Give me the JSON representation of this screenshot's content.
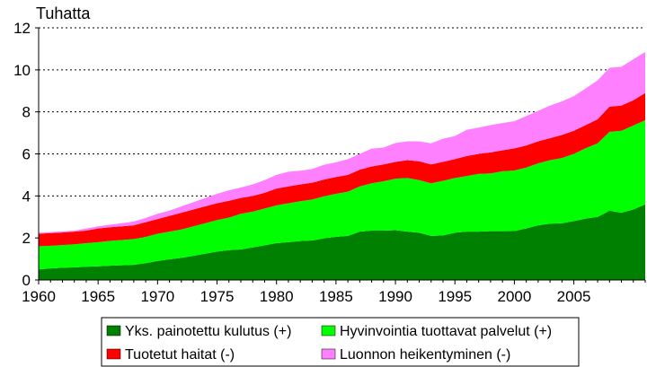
{
  "chart_data": {
    "type": "area",
    "stacked": true,
    "ylabel": "Tuhatta",
    "ylim": [
      0,
      12
    ],
    "yticks": [
      "0",
      "2",
      "4",
      "6",
      "8",
      "10",
      "12"
    ],
    "xlim": [
      1960,
      2011
    ],
    "xticks": [
      "1960",
      "1965",
      "1970",
      "1975",
      "1980",
      "1985",
      "1990",
      "1995",
      "2000",
      "2005"
    ],
    "grid": "horizontal dotted",
    "legend_position": "bottom",
    "x": [
      1960,
      1961,
      1962,
      1963,
      1964,
      1965,
      1966,
      1967,
      1968,
      1969,
      1970,
      1971,
      1972,
      1973,
      1974,
      1975,
      1976,
      1977,
      1978,
      1979,
      1980,
      1981,
      1982,
      1983,
      1984,
      1985,
      1986,
      1987,
      1988,
      1989,
      1990,
      1991,
      1992,
      1993,
      1994,
      1995,
      1996,
      1997,
      1998,
      1999,
      2000,
      2001,
      2002,
      2003,
      2004,
      2005,
      2006,
      2007,
      2008,
      2009,
      2010,
      2011
    ],
    "series": [
      {
        "name": "Yks. painotettu kulutus (+)",
        "color": "#008000",
        "values": [
          0.5,
          0.55,
          0.58,
          0.6,
          0.63,
          0.65,
          0.68,
          0.7,
          0.72,
          0.8,
          0.9,
          0.98,
          1.05,
          1.15,
          1.25,
          1.35,
          1.42,
          1.45,
          1.55,
          1.65,
          1.75,
          1.8,
          1.85,
          1.88,
          1.98,
          2.05,
          2.1,
          2.3,
          2.35,
          2.35,
          2.37,
          2.3,
          2.25,
          2.1,
          2.12,
          2.25,
          2.3,
          2.3,
          2.32,
          2.32,
          2.33,
          2.45,
          2.6,
          2.68,
          2.7,
          2.8,
          2.92,
          3.0,
          3.3,
          3.2,
          3.35,
          3.6
        ]
      },
      {
        "name": "Hyvinvointia tuottavat palvelut (+)",
        "color": "#00ff00",
        "values": [
          1.1,
          1.08,
          1.08,
          1.1,
          1.12,
          1.15,
          1.18,
          1.2,
          1.23,
          1.25,
          1.3,
          1.32,
          1.35,
          1.4,
          1.45,
          1.5,
          1.55,
          1.7,
          1.7,
          1.75,
          1.8,
          1.85,
          1.9,
          1.95,
          2.0,
          2.05,
          2.1,
          2.15,
          2.25,
          2.35,
          2.45,
          2.55,
          2.5,
          2.5,
          2.6,
          2.6,
          2.65,
          2.75,
          2.75,
          2.85,
          2.88,
          2.9,
          2.95,
          3.02,
          3.1,
          3.2,
          3.35,
          3.5,
          3.75,
          3.9,
          4.0,
          4.0
        ]
      },
      {
        "name": "Tuotetut haitat (-)",
        "color": "#ff0000",
        "values": [
          0.6,
          0.6,
          0.6,
          0.6,
          0.6,
          0.65,
          0.65,
          0.65,
          0.65,
          0.7,
          0.7,
          0.75,
          0.8,
          0.8,
          0.8,
          0.8,
          0.8,
          0.75,
          0.75,
          0.75,
          0.8,
          0.8,
          0.8,
          0.8,
          0.8,
          0.8,
          0.8,
          0.8,
          0.8,
          0.8,
          0.8,
          0.85,
          0.9,
          0.9,
          0.9,
          0.9,
          0.95,
          0.95,
          1.0,
          1.0,
          1.05,
          1.05,
          1.05,
          1.05,
          1.1,
          1.1,
          1.1,
          1.15,
          1.2,
          1.2,
          1.2,
          1.3
        ]
      },
      {
        "name": "Luonnon heikentyminen (-)",
        "color": "#ff80ff",
        "values": [
          0.05,
          0.05,
          0.05,
          0.05,
          0.1,
          0.1,
          0.12,
          0.15,
          0.18,
          0.2,
          0.25,
          0.25,
          0.3,
          0.35,
          0.4,
          0.45,
          0.5,
          0.5,
          0.55,
          0.6,
          0.65,
          0.7,
          0.65,
          0.65,
          0.7,
          0.7,
          0.75,
          0.75,
          0.85,
          0.8,
          0.9,
          0.9,
          0.95,
          1.0,
          1.1,
          1.1,
          1.25,
          1.25,
          1.3,
          1.3,
          1.3,
          1.4,
          1.45,
          1.55,
          1.6,
          1.65,
          1.75,
          1.85,
          1.85,
          1.85,
          1.95,
          1.95
        ]
      }
    ]
  }
}
